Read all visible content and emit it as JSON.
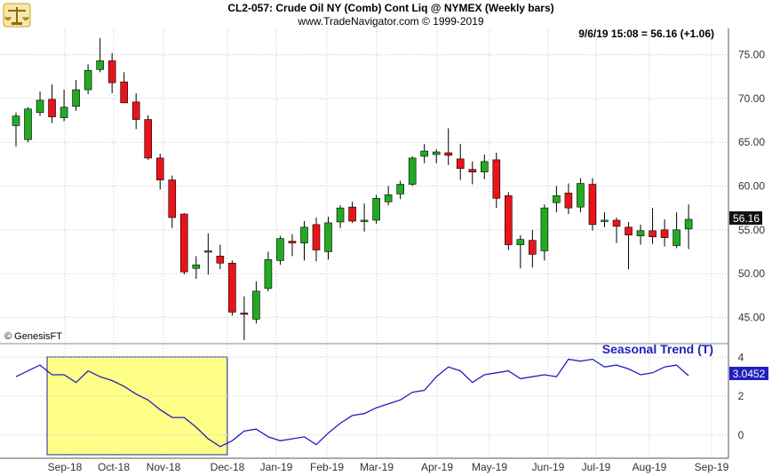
{
  "header": {
    "title": "CL2-057:  Crude Oil NY (Comb) Cont Liq @ NYMEX  (Weekly bars)",
    "copyright": "www.TradeNavigator.com © 1999-2019",
    "last_quote": "9/6/19 15:08 = 56.16 (+1.06)"
  },
  "watermark": "© GenesisFT",
  "logo_icon": "scales-icon",
  "colors": {
    "up": "#22aa22",
    "down": "#e8141a",
    "seasonal": "#2020c0",
    "highlight_fill": "#ffff88",
    "highlight_border": "#2020a0"
  },
  "chart_data": [
    {
      "type": "candlestick",
      "name": "price",
      "ylim": [
        42,
        78
      ],
      "yticks": [
        "75.00",
        "70.00",
        "65.00",
        "60.00",
        "55.00",
        "50.00",
        "45.00"
      ],
      "last_value_label": "56.16",
      "x_labels": [
        "Sep-18",
        "Oct-18",
        "Nov-18",
        "Dec-18",
        "Jan-19",
        "Feb-19",
        "Mar-19",
        "Apr-19",
        "May-19",
        "Jun-19",
        "Jul-19",
        "Aug-19",
        "Sep-19"
      ],
      "bars": [
        {
          "o": 66.9,
          "h": 68.4,
          "l": 64.5,
          "c": 68.0
        },
        {
          "o": 65.3,
          "h": 69.0,
          "l": 65.0,
          "c": 68.8
        },
        {
          "o": 68.4,
          "h": 70.8,
          "l": 68.0,
          "c": 69.8
        },
        {
          "o": 69.9,
          "h": 71.6,
          "l": 67.2,
          "c": 67.9
        },
        {
          "o": 67.8,
          "h": 71.0,
          "l": 67.4,
          "c": 69.0
        },
        {
          "o": 69.1,
          "h": 72.1,
          "l": 68.6,
          "c": 71.0
        },
        {
          "o": 71.0,
          "h": 73.9,
          "l": 70.5,
          "c": 73.2
        },
        {
          "o": 73.3,
          "h": 76.9,
          "l": 73.0,
          "c": 74.3
        },
        {
          "o": 74.3,
          "h": 75.2,
          "l": 70.6,
          "c": 71.8
        },
        {
          "o": 71.9,
          "h": 73.0,
          "l": 69.5,
          "c": 69.5
        },
        {
          "o": 69.6,
          "h": 70.6,
          "l": 66.5,
          "c": 67.6
        },
        {
          "o": 67.6,
          "h": 68.1,
          "l": 63.0,
          "c": 63.2
        },
        {
          "o": 63.2,
          "h": 63.7,
          "l": 59.6,
          "c": 60.7
        },
        {
          "o": 60.7,
          "h": 61.2,
          "l": 55.2,
          "c": 56.4
        },
        {
          "o": 56.8,
          "h": 56.9,
          "l": 49.9,
          "c": 50.2
        },
        {
          "o": 50.6,
          "h": 52.0,
          "l": 49.4,
          "c": 51.0
        },
        {
          "o": 52.6,
          "h": 54.6,
          "l": 49.9,
          "c": 52.6
        },
        {
          "o": 52.0,
          "h": 53.3,
          "l": 50.5,
          "c": 51.2
        },
        {
          "o": 51.2,
          "h": 51.5,
          "l": 45.2,
          "c": 45.6
        },
        {
          "o": 45.5,
          "h": 47.4,
          "l": 42.4,
          "c": 45.4
        },
        {
          "o": 44.8,
          "h": 49.1,
          "l": 44.3,
          "c": 48.0
        },
        {
          "o": 48.3,
          "h": 52.5,
          "l": 48.0,
          "c": 51.6
        },
        {
          "o": 51.5,
          "h": 54.3,
          "l": 51.0,
          "c": 54.0
        },
        {
          "o": 53.7,
          "h": 54.5,
          "l": 52.0,
          "c": 53.5
        },
        {
          "o": 53.5,
          "h": 56.0,
          "l": 51.5,
          "c": 55.3
        },
        {
          "o": 55.6,
          "h": 56.4,
          "l": 51.4,
          "c": 52.7
        },
        {
          "o": 52.5,
          "h": 56.5,
          "l": 51.6,
          "c": 55.8
        },
        {
          "o": 55.9,
          "h": 57.8,
          "l": 55.2,
          "c": 57.5
        },
        {
          "o": 57.6,
          "h": 58.2,
          "l": 55.8,
          "c": 56.0
        },
        {
          "o": 56.0,
          "h": 58.0,
          "l": 54.8,
          "c": 56.1
        },
        {
          "o": 56.1,
          "h": 59.0,
          "l": 55.7,
          "c": 58.6
        },
        {
          "o": 58.2,
          "h": 60.0,
          "l": 57.8,
          "c": 59.0
        },
        {
          "o": 59.1,
          "h": 60.6,
          "l": 58.5,
          "c": 60.2
        },
        {
          "o": 60.2,
          "h": 63.4,
          "l": 60.0,
          "c": 63.2
        },
        {
          "o": 63.4,
          "h": 64.8,
          "l": 62.6,
          "c": 64.0
        },
        {
          "o": 63.6,
          "h": 64.2,
          "l": 62.6,
          "c": 63.9
        },
        {
          "o": 63.8,
          "h": 66.6,
          "l": 62.4,
          "c": 63.5
        },
        {
          "o": 63.1,
          "h": 64.8,
          "l": 60.7,
          "c": 62.0
        },
        {
          "o": 61.9,
          "h": 62.8,
          "l": 60.2,
          "c": 61.6
        },
        {
          "o": 61.6,
          "h": 63.6,
          "l": 60.8,
          "c": 62.8
        },
        {
          "o": 63.0,
          "h": 63.8,
          "l": 57.5,
          "c": 58.6
        },
        {
          "o": 58.9,
          "h": 59.3,
          "l": 52.7,
          "c": 53.3
        },
        {
          "o": 53.3,
          "h": 54.4,
          "l": 50.6,
          "c": 53.9
        },
        {
          "o": 53.8,
          "h": 55.0,
          "l": 50.7,
          "c": 52.2
        },
        {
          "o": 52.6,
          "h": 57.9,
          "l": 51.5,
          "c": 57.5
        },
        {
          "o": 58.1,
          "h": 60.0,
          "l": 57.0,
          "c": 58.9
        },
        {
          "o": 59.2,
          "h": 60.3,
          "l": 56.8,
          "c": 57.5
        },
        {
          "o": 57.6,
          "h": 60.9,
          "l": 57.0,
          "c": 60.3
        },
        {
          "o": 60.2,
          "h": 60.9,
          "l": 54.9,
          "c": 55.6
        },
        {
          "o": 56.1,
          "h": 57.0,
          "l": 55.3,
          "c": 56.1
        },
        {
          "o": 56.1,
          "h": 56.4,
          "l": 53.5,
          "c": 55.4
        },
        {
          "o": 55.3,
          "h": 55.9,
          "l": 50.5,
          "c": 54.4
        },
        {
          "o": 54.3,
          "h": 55.6,
          "l": 53.3,
          "c": 54.9
        },
        {
          "o": 54.9,
          "h": 57.5,
          "l": 53.4,
          "c": 54.2
        },
        {
          "o": 55.0,
          "h": 56.2,
          "l": 53.1,
          "c": 54.1
        },
        {
          "o": 53.2,
          "h": 57.0,
          "l": 52.9,
          "c": 55.0
        },
        {
          "o": 55.1,
          "h": 57.9,
          "l": 52.8,
          "c": 56.2
        }
      ]
    },
    {
      "type": "line",
      "name": "Seasonal Trend (T)",
      "ylim": [
        -1.2,
        4.7
      ],
      "yticks": [
        "4",
        "2",
        "0"
      ],
      "last_value_label": "3.0452",
      "highlight_range": [
        2,
        17
      ],
      "values": [
        3.0,
        3.3,
        3.6,
        3.1,
        3.1,
        2.7,
        3.3,
        3.0,
        2.8,
        2.5,
        2.1,
        1.8,
        1.3,
        0.9,
        0.9,
        0.4,
        -0.2,
        -0.6,
        -0.3,
        0.2,
        0.3,
        -0.1,
        -0.3,
        -0.2,
        -0.1,
        -0.5,
        0.1,
        0.6,
        1.0,
        1.1,
        1.4,
        1.6,
        1.8,
        2.2,
        2.3,
        3.0,
        3.5,
        3.3,
        2.7,
        3.1,
        3.2,
        3.3,
        2.9,
        3.0,
        3.1,
        3.0,
        3.9,
        3.8,
        3.9,
        3.5,
        3.6,
        3.4,
        3.1,
        3.2,
        3.5,
        3.6,
        3.05
      ]
    }
  ]
}
